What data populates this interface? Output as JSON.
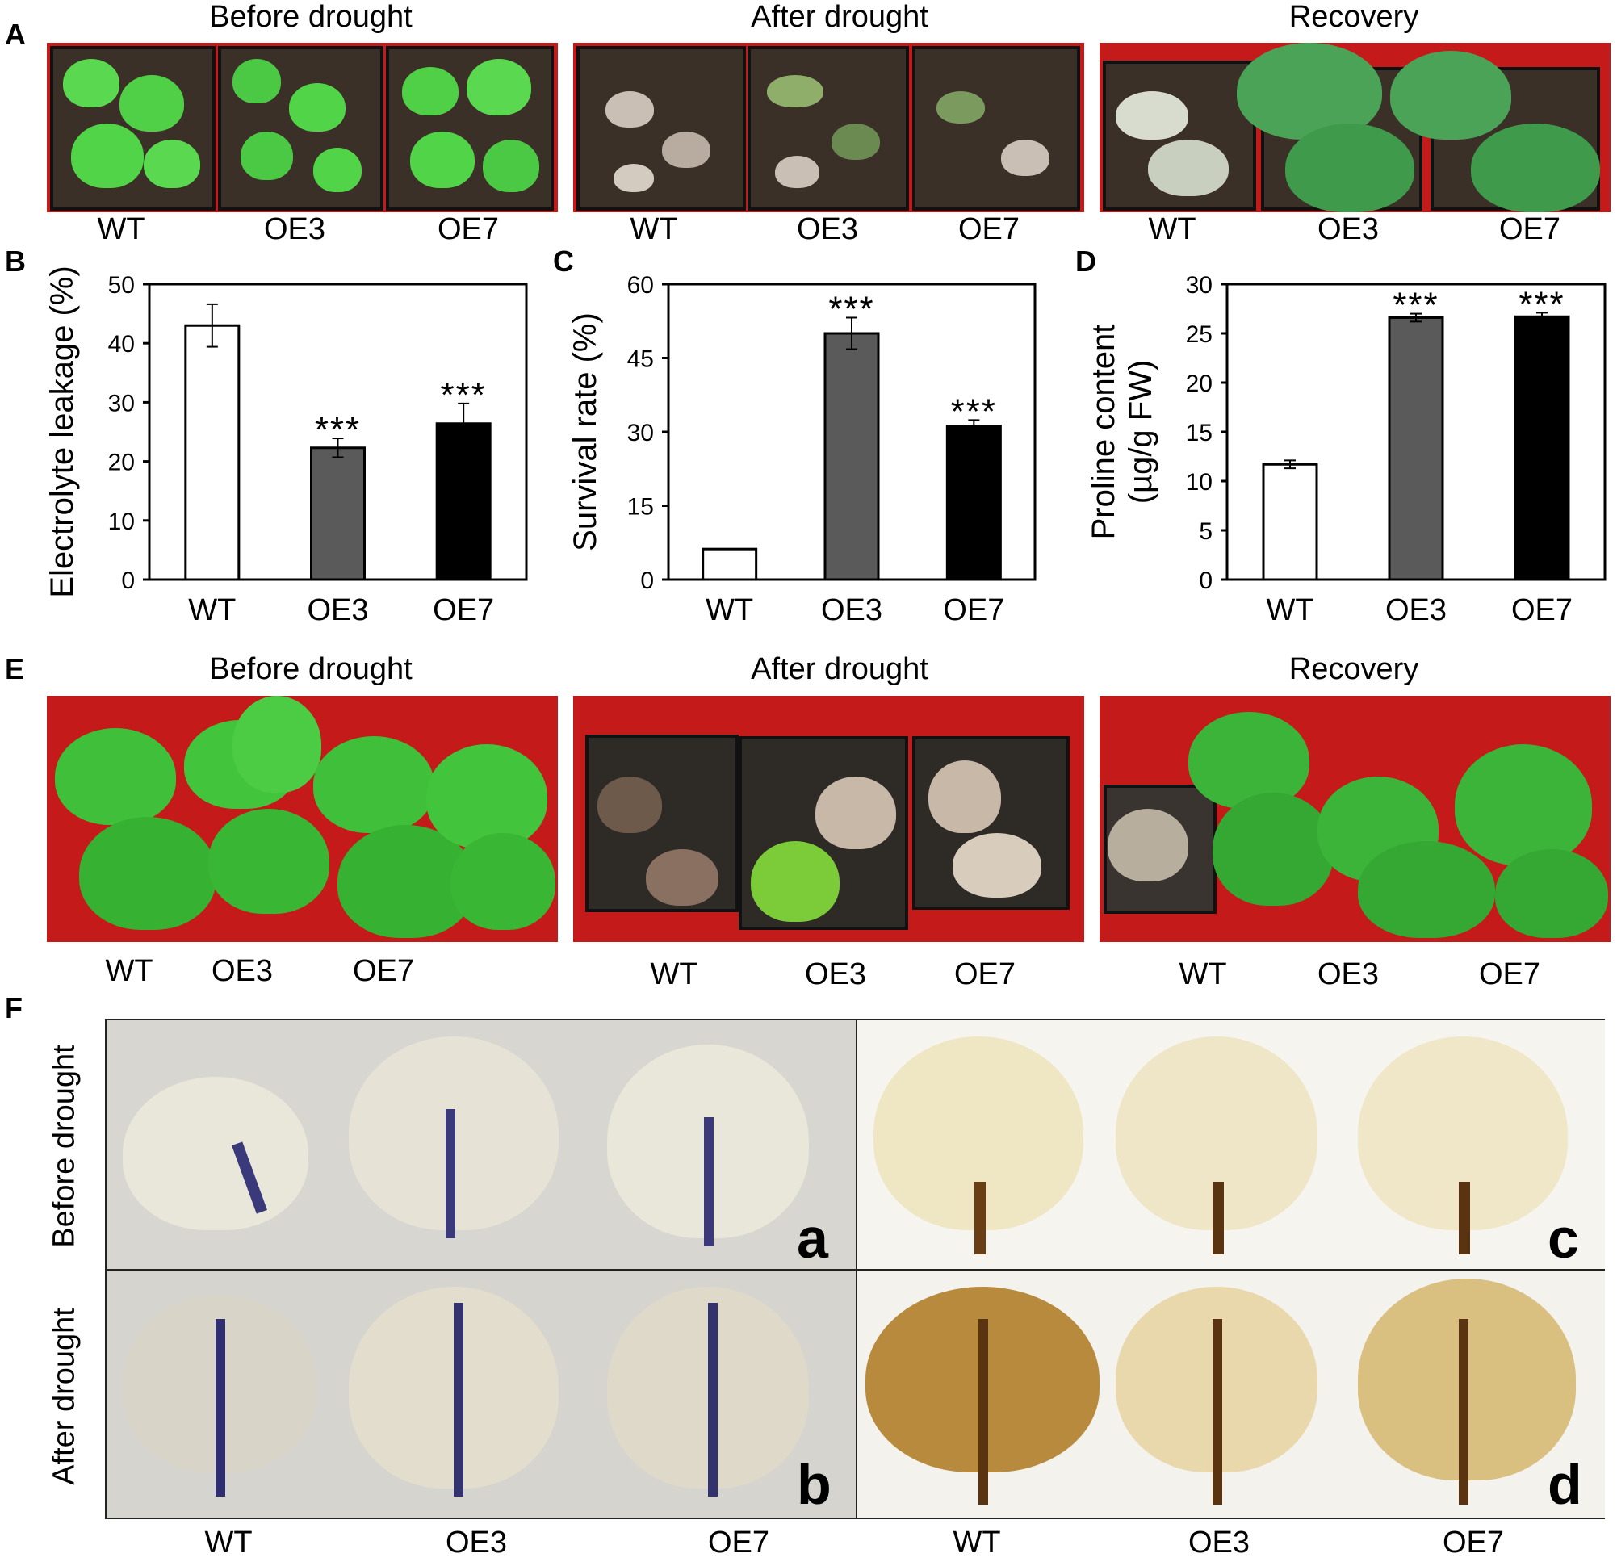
{
  "panels": {
    "A": "A",
    "B": "B",
    "C": "C",
    "D": "D",
    "E": "E",
    "F": "F"
  },
  "stage_titles": [
    "Before drought",
    "After drought",
    "Recovery"
  ],
  "genotypes": [
    "WT",
    "OE3",
    "OE7"
  ],
  "colors": {
    "wt_bar": "#ffffff",
    "oe3_bar": "#5a5a5a",
    "oe7_bar": "#000000",
    "background_red": "#c41a1a",
    "leaf_green": "#3fbf3a",
    "dab_brown": "#8a5a1a",
    "nbt_blue": "#3a3a7a"
  },
  "sig_mark": "***",
  "chart_data": [
    {
      "type": "bar",
      "panel": "B",
      "categories": [
        "WT",
        "OE3",
        "OE7"
      ],
      "values": [
        43,
        22.3,
        26.4
      ],
      "errors": [
        3.6,
        1.6,
        3.4
      ],
      "significance": [
        "",
        "***",
        "***"
      ],
      "ylabel": "Electrolyte leakage (%)",
      "ylim": [
        0,
        50
      ],
      "yticks": [
        0,
        10,
        20,
        30,
        40,
        50
      ]
    },
    {
      "type": "bar",
      "panel": "C",
      "categories": [
        "WT",
        "OE3",
        "OE7"
      ],
      "values": [
        6.2,
        50,
        31.2
      ],
      "errors": [
        0,
        3.2,
        1.2
      ],
      "significance": [
        "",
        "***",
        "***"
      ],
      "ylabel": "Survival rate (%)",
      "ylim": [
        0,
        60
      ],
      "yticks": [
        0,
        15,
        30,
        45,
        60
      ]
    },
    {
      "type": "bar",
      "panel": "D",
      "categories": [
        "WT",
        "OE3",
        "OE7"
      ],
      "values": [
        11.7,
        26.6,
        26.7
      ],
      "errors": [
        0.4,
        0.4,
        0.4
      ],
      "significance": [
        "",
        "***",
        "***"
      ],
      "ylabel": "Proline content",
      "ylabel2": "(µg/g FW)",
      "ylim": [
        0,
        30
      ],
      "yticks": [
        0,
        5,
        10,
        15,
        20,
        25,
        30
      ]
    }
  ],
  "stain_panel": {
    "row_labels": [
      "Before drought",
      "After drought"
    ],
    "sub_labels": [
      "a",
      "b",
      "c",
      "d"
    ]
  }
}
